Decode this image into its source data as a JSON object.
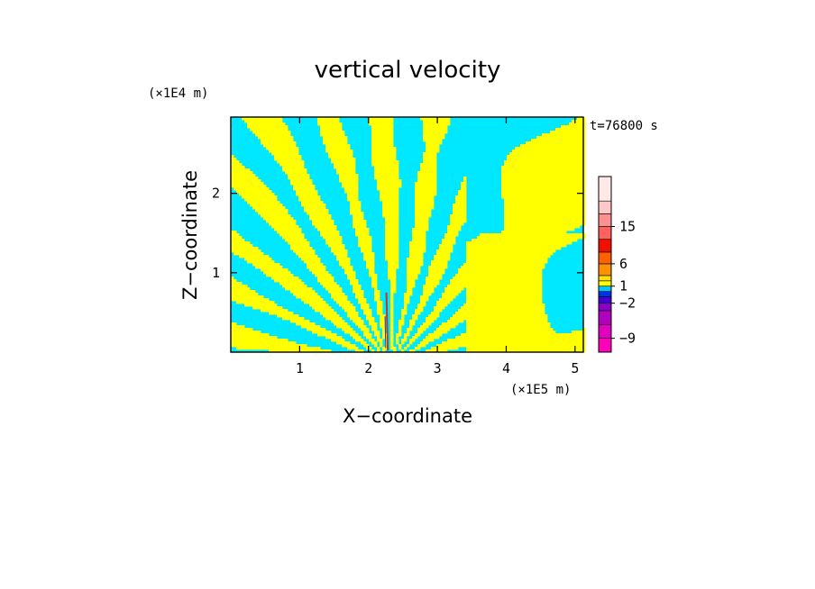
{
  "chart_data": {
    "type": "heatmap",
    "title": "vertical velocity",
    "time_label": "t=76800 s",
    "xlabel": "X−coordinate",
    "ylabel": "Z−coordinate",
    "x_unit": "(×1E5 m)",
    "y_unit": "(×1E4 m)",
    "x_range": [
      0,
      5.12
    ],
    "y_range": [
      0,
      2.96
    ],
    "x_ticks": [
      1,
      2,
      3,
      4,
      5
    ],
    "x_tick_labels": [
      "1",
      "2",
      "3",
      "4",
      "5"
    ],
    "y_ticks": [
      1,
      2
    ],
    "y_tick_labels": [
      "1",
      "2"
    ],
    "field_colors": {
      "positive": "#ffff00",
      "negative": "#00e8ff",
      "strong_positive": "#b83a2a",
      "strong_negative": "#4b2ca0"
    },
    "colorbar": {
      "levels": [
        -12,
        -9,
        -6,
        -4,
        -2,
        -1,
        0,
        1,
        2,
        4,
        6,
        9,
        12,
        15,
        18,
        24
      ],
      "colors": [
        "#ff00b8",
        "#e000c0",
        "#b000c0",
        "#8a00c8",
        "#4000d0",
        "#0030e8",
        "#00c8ff",
        "#ffff00",
        "#ffe000",
        "#ff9000",
        "#ff6000",
        "#f01000",
        "#ff6060",
        "#ff9090",
        "#ffc8c8",
        "#ffe8e8"
      ],
      "tick_labels": [
        {
          "value": -9,
          "label": "−9"
        },
        {
          "value": -2,
          "label": "−2"
        },
        {
          "value": 1,
          "label": "1"
        },
        {
          "value": 6,
          "label": "6"
        },
        {
          "value": 15,
          "label": "15"
        }
      ]
    }
  }
}
